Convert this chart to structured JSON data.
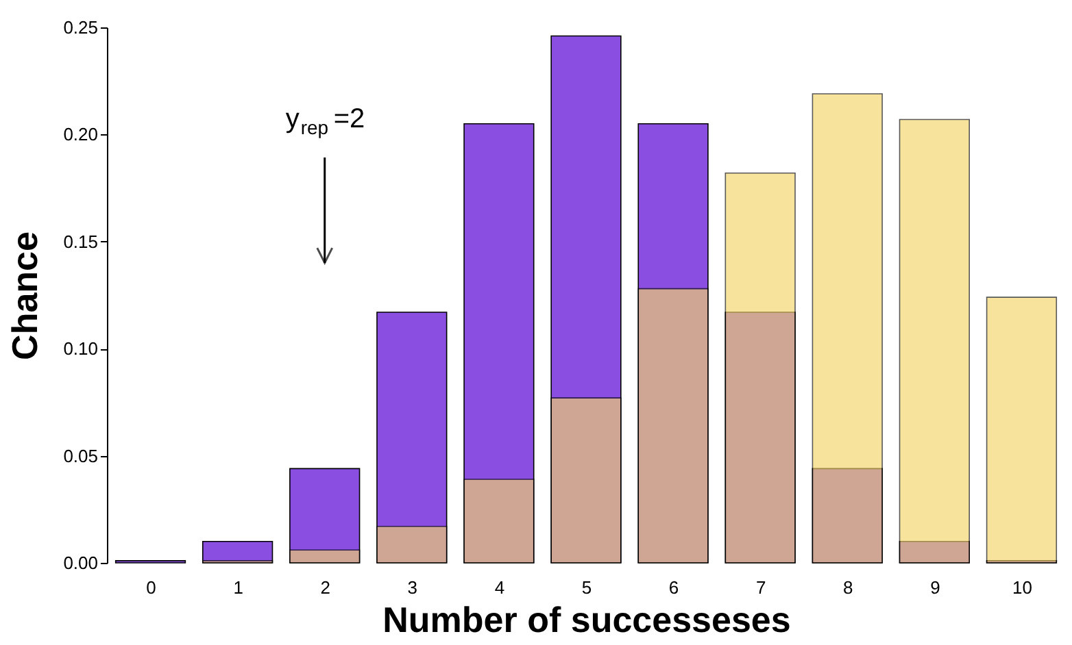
{
  "chart_data": {
    "type": "bar",
    "xlabel": "Number of successeses",
    "ylabel": "Chance",
    "categories": [
      "0",
      "1",
      "2",
      "3",
      "4",
      "5",
      "6",
      "7",
      "8",
      "9",
      "10"
    ],
    "series": [
      {
        "color": "#8a4fe0",
        "values": [
          0.001,
          0.01,
          0.044,
          0.117,
          0.205,
          0.246,
          0.205,
          0.117,
          0.044,
          0.01,
          0.001
        ]
      },
      {
        "color": "#f5d56a",
        "values": [
          null,
          0.001,
          0.006,
          0.017,
          0.039,
          0.077,
          0.128,
          0.182,
          0.219,
          0.207,
          0.124
        ]
      }
    ],
    "ylim": [
      0,
      0.25
    ],
    "yticks": [
      {
        "value": 0,
        "label": "0.00"
      },
      {
        "value": 0.05,
        "label": "0.05"
      },
      {
        "value": 0.1,
        "label": "0.10"
      },
      {
        "value": 0.15,
        "label": "0.15"
      },
      {
        "value": 0.2,
        "label": "0.20"
      },
      {
        "value": 0.25,
        "label": "0.25"
      }
    ],
    "grid": false,
    "annotations": [
      "y$_{rep}$=2"
    ]
  }
}
